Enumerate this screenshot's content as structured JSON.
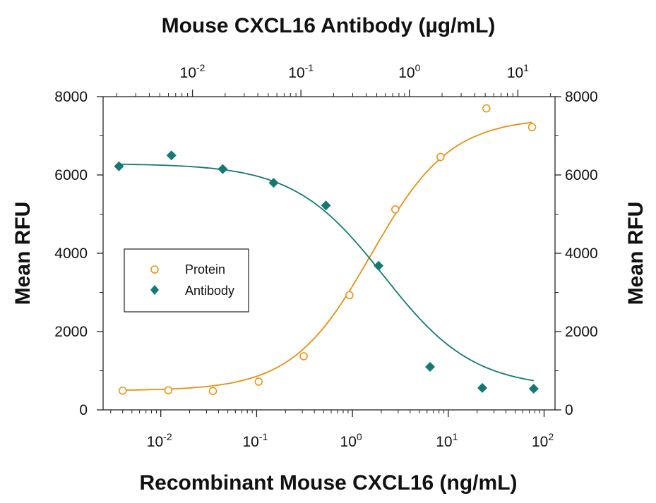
{
  "chart_data": {
    "type": "scatter",
    "title_top": "Mouse CXCL16 Antibody (µg/mL)",
    "xlabel": "Recombinant Mouse CXCL16 (ng/mL)",
    "ylabel_left": "Mean RFU",
    "ylabel_right": "Mean RFU",
    "y_ticks": [
      "0",
      "2000",
      "4000",
      "6000",
      "8000"
    ],
    "ylim": [
      0,
      8000
    ],
    "x_scale": "log",
    "xlim": [
      0.0025,
      130
    ],
    "x_ticks": [
      {
        "base": "10",
        "exp": "-2",
        "value": 0.01
      },
      {
        "base": "10",
        "exp": "-1",
        "value": 0.1
      },
      {
        "base": "10",
        "exp": "0",
        "value": 1
      },
      {
        "base": "10",
        "exp": "1",
        "value": 10
      },
      {
        "base": "10",
        "exp": "2",
        "value": 100
      }
    ],
    "top_x_scale": "log",
    "top_xlim": [
      0.0015,
      22
    ],
    "top_x_ticks": [
      {
        "base": "10",
        "exp": "-2",
        "value": 0.01
      },
      {
        "base": "10",
        "exp": "-1",
        "value": 0.1
      },
      {
        "base": "10",
        "exp": "0",
        "value": 1
      },
      {
        "base": "10",
        "exp": "1",
        "value": 10
      }
    ],
    "legend_position": "left-middle",
    "series": [
      {
        "name": "Protein",
        "axis": "bottom",
        "marker": "open-circle",
        "color": "#E8900F",
        "x": [
          0.004,
          0.012,
          0.035,
          0.105,
          0.31,
          0.93,
          2.8,
          8.3,
          25,
          75
        ],
        "y": [
          490,
          500,
          480,
          720,
          1370,
          2930,
          5120,
          6460,
          7700,
          7220
        ]
      },
      {
        "name": "Antibody",
        "axis": "top",
        "marker": "filled-diamond",
        "color": "#127A72",
        "x": [
          0.0021,
          0.0064,
          0.019,
          0.056,
          0.17,
          0.52,
          1.55,
          4.7,
          14
        ],
        "y": [
          6220,
          6500,
          6150,
          5800,
          5220,
          3680,
          1100,
          560,
          540
        ]
      }
    ]
  }
}
